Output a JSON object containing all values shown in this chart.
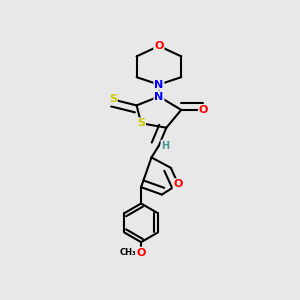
{
  "background_color": "#e8e8e8",
  "atom_colors": {
    "O": "#ff0000",
    "N": "#0000ff",
    "S": "#cccc00",
    "C": "#000000",
    "H": "#4a9090"
  },
  "bond_color": "#000000",
  "bond_lw": 1.5,
  "figsize": [
    3.0,
    3.0
  ],
  "dpi": 100
}
